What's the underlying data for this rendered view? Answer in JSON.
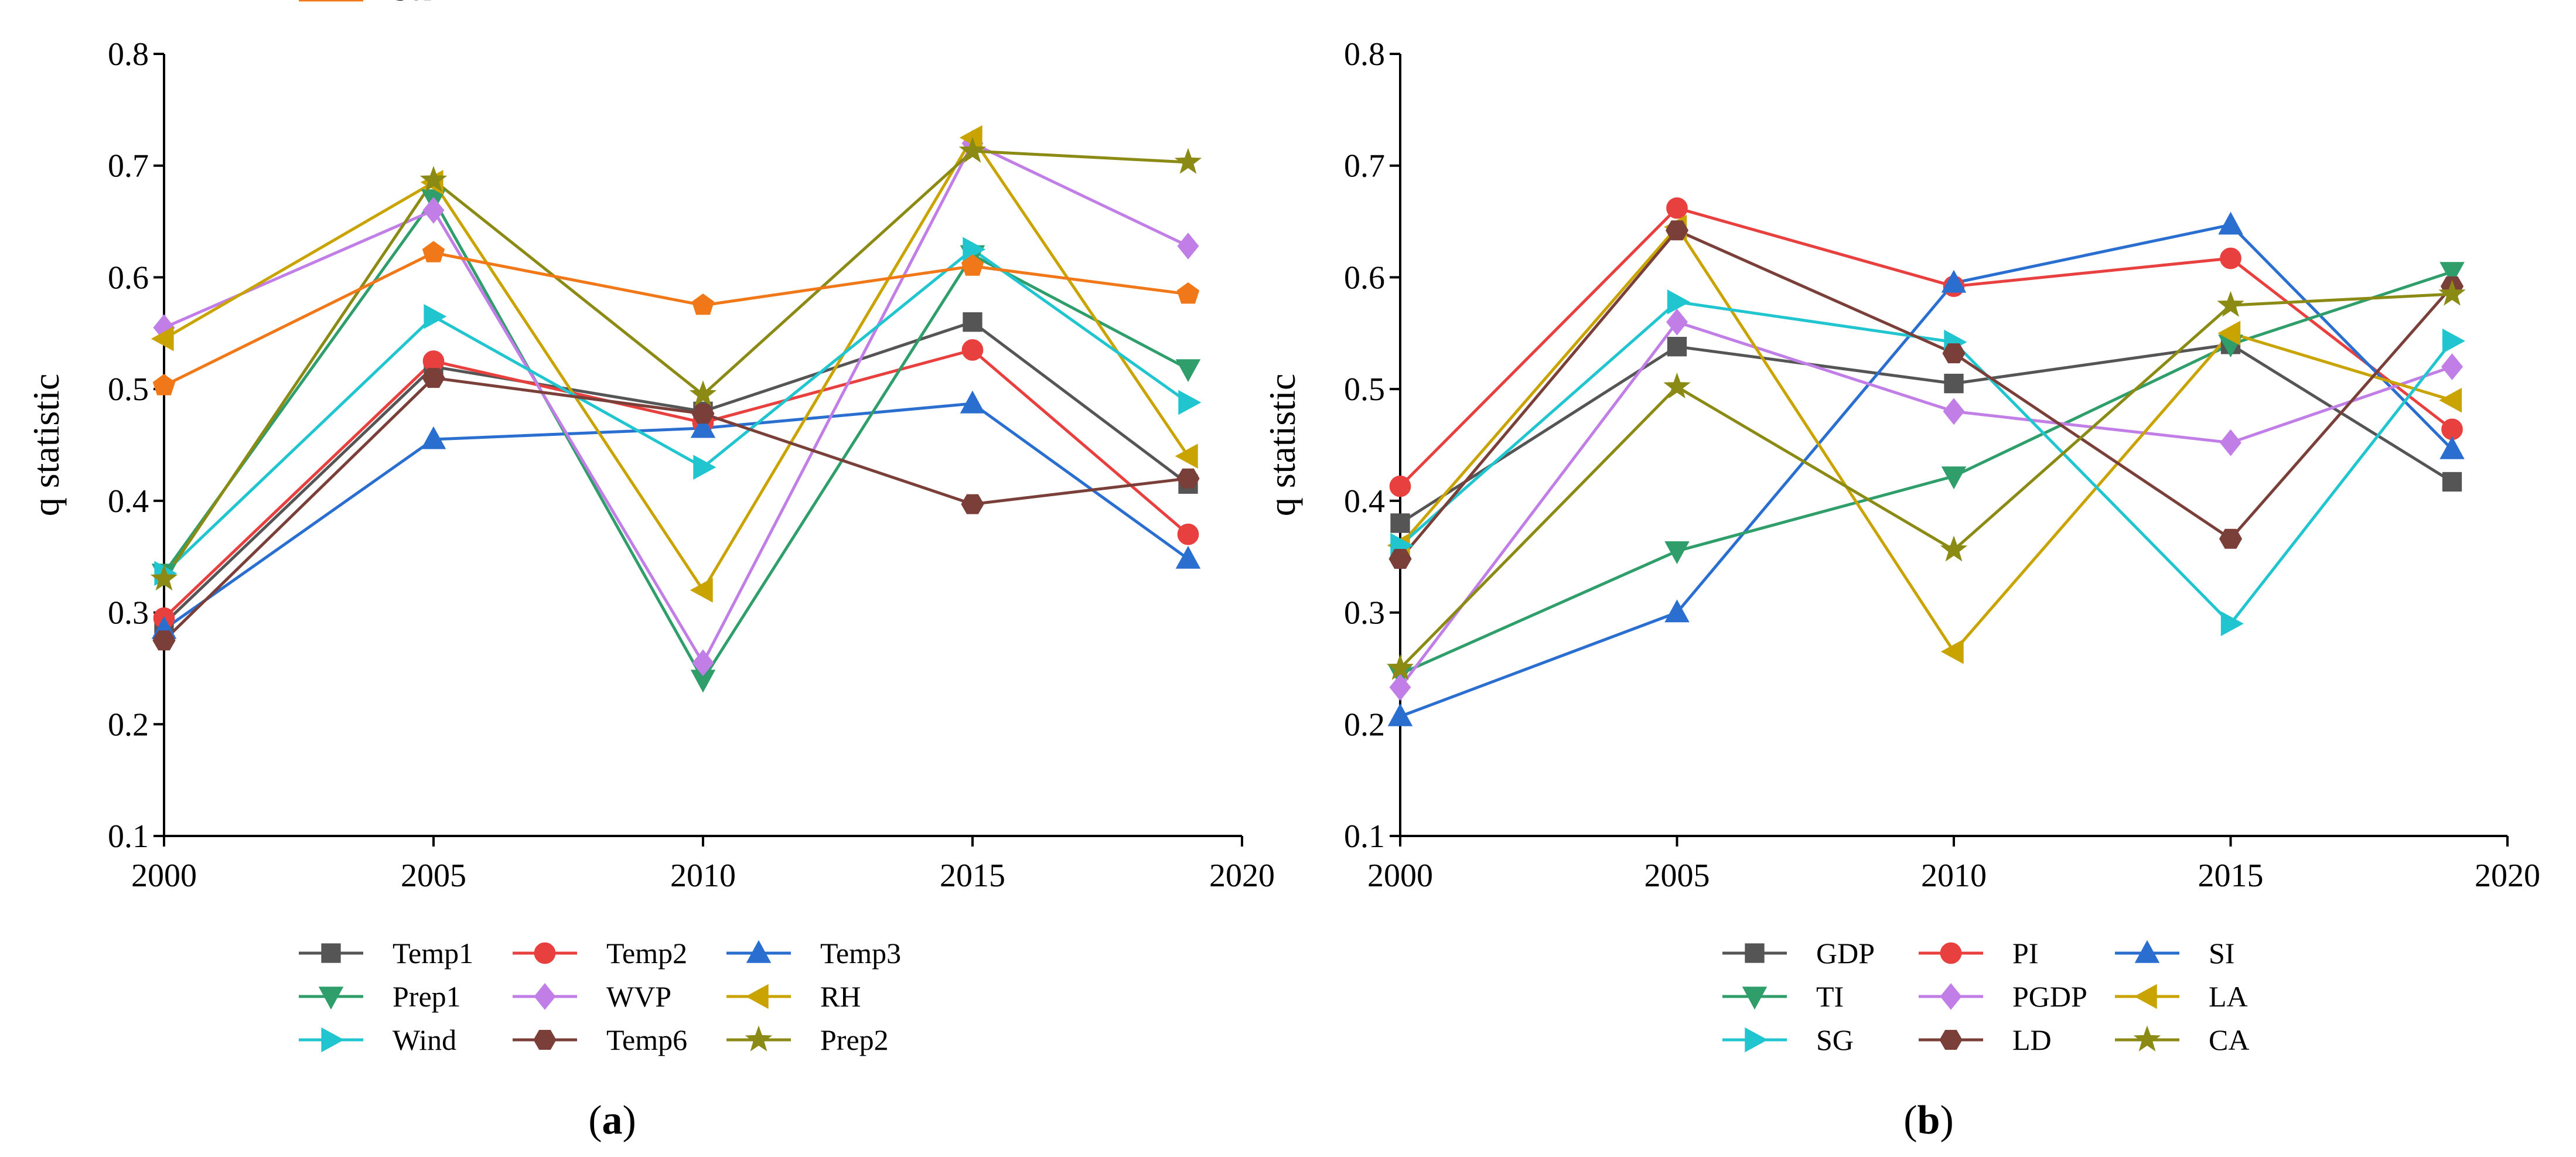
{
  "chart_data": [
    {
      "type": "line",
      "panel_label": "a",
      "title": "",
      "xlabel": "",
      "ylabel": "q statistic",
      "xlim": [
        2000,
        2020
      ],
      "ylim": [
        0.1,
        0.8
      ],
      "x": [
        2000,
        2005,
        2010,
        2015,
        2019
      ],
      "x_ticks": [
        "2000",
        "2005",
        "2010",
        "2015",
        "2020"
      ],
      "y_ticks": [
        "0.1",
        "0.2",
        "0.3",
        "0.4",
        "0.5",
        "0.6",
        "0.7",
        "0.8"
      ],
      "legend_position": "bottom",
      "series": [
        {
          "name": "Temp1",
          "color": "#555555",
          "marker": "square",
          "values": [
            0.29,
            0.52,
            0.48,
            0.56,
            0.415
          ]
        },
        {
          "name": "Temp2",
          "color": "#e8403f",
          "marker": "circle",
          "values": [
            0.295,
            0.525,
            0.47,
            0.535,
            0.37
          ]
        },
        {
          "name": "Temp3",
          "color": "#2a6fd0",
          "marker": "triangle-up",
          "values": [
            0.285,
            0.455,
            0.465,
            0.487,
            0.348
          ]
        },
        {
          "name": "Prep1",
          "color": "#2f9e6b",
          "marker": "triangle-down",
          "values": [
            0.335,
            0.67,
            0.24,
            0.62,
            0.518
          ]
        },
        {
          "name": "WVP",
          "color": "#c07ee6",
          "marker": "diamond",
          "values": [
            0.555,
            0.66,
            0.255,
            0.72,
            0.628
          ]
        },
        {
          "name": "RH",
          "color": "#c9a300",
          "marker": "triangle-left",
          "values": [
            0.545,
            0.685,
            0.32,
            0.725,
            0.44
          ]
        },
        {
          "name": "Wind",
          "color": "#20c5d0",
          "marker": "triangle-right",
          "values": [
            0.335,
            0.565,
            0.43,
            0.625,
            0.488
          ]
        },
        {
          "name": "Temp6",
          "color": "#7b3f3a",
          "marker": "hexagon",
          "values": [
            0.275,
            0.51,
            0.478,
            0.397,
            0.42
          ]
        },
        {
          "name": "Prep2",
          "color": "#8a8a14",
          "marker": "star",
          "values": [
            0.33,
            0.687,
            0.495,
            0.713,
            0.703
          ]
        },
        {
          "name": "Soil",
          "color": "#f07818",
          "marker": "pentagon",
          "values": [
            0.503,
            0.622,
            0.575,
            0.61,
            0.585
          ]
        }
      ]
    },
    {
      "type": "line",
      "panel_label": "b",
      "title": "",
      "xlabel": "",
      "ylabel": "q statistic",
      "xlim": [
        2000,
        2020
      ],
      "ylim": [
        0.1,
        0.8
      ],
      "x": [
        2000,
        2005,
        2010,
        2015,
        2019
      ],
      "x_ticks": [
        "2000",
        "2005",
        "2010",
        "2015",
        "2020"
      ],
      "y_ticks": [
        "0.1",
        "0.2",
        "0.3",
        "0.4",
        "0.5",
        "0.6",
        "0.7",
        "0.8"
      ],
      "legend_position": "bottom",
      "series": [
        {
          "name": "GDP",
          "color": "#555555",
          "marker": "square",
          "values": [
            0.38,
            0.538,
            0.505,
            0.54,
            0.417
          ]
        },
        {
          "name": "PI",
          "color": "#e8403f",
          "marker": "circle",
          "values": [
            0.413,
            0.662,
            0.592,
            0.617,
            0.464
          ]
        },
        {
          "name": "SI",
          "color": "#2a6fd0",
          "marker": "triangle-up",
          "values": [
            0.207,
            0.3,
            0.595,
            0.647,
            0.446
          ]
        },
        {
          "name": "TI",
          "color": "#2f9e6b",
          "marker": "triangle-down",
          "values": [
            0.245,
            0.355,
            0.422,
            0.54,
            0.605
          ]
        },
        {
          "name": "PGDP",
          "color": "#c07ee6",
          "marker": "diamond",
          "values": [
            0.233,
            0.56,
            0.48,
            0.452,
            0.52
          ]
        },
        {
          "name": "LA",
          "color": "#c9a300",
          "marker": "triangle-left",
          "values": [
            0.36,
            0.645,
            0.265,
            0.55,
            0.49
          ]
        },
        {
          "name": "SG",
          "color": "#20c5d0",
          "marker": "triangle-right",
          "values": [
            0.36,
            0.578,
            0.542,
            0.29,
            0.543
          ]
        },
        {
          "name": "LD",
          "color": "#7b3f3a",
          "marker": "hexagon",
          "values": [
            0.348,
            0.642,
            0.532,
            0.366,
            0.592
          ]
        },
        {
          "name": "CA",
          "color": "#8a8a14",
          "marker": "star",
          "values": [
            0.25,
            0.502,
            0.356,
            0.575,
            0.585
          ]
        }
      ]
    }
  ],
  "captions": {
    "a": {
      "open": "(",
      "letter": "a",
      "close": ")"
    },
    "b": {
      "open": "(",
      "letter": "b",
      "close": ")"
    }
  }
}
